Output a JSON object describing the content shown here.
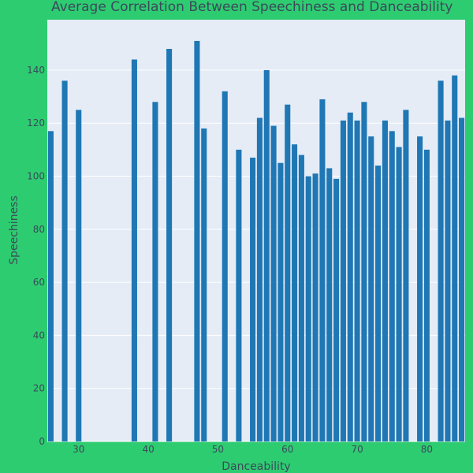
{
  "colors": {
    "background": "#2ecc71",
    "plot_background": "#e5ecf6",
    "grid": "#ffffff",
    "bar": "#1f77b4",
    "text": "#3a4a5a"
  },
  "chart_data": {
    "type": "bar",
    "title": "Average Correlation Between Speechiness and Danceability",
    "xlabel": "Danceability",
    "ylabel": "Speechiness",
    "xlim": [
      25.5,
      85.5
    ],
    "ylim": [
      0,
      159
    ],
    "x_ticks": [
      30,
      40,
      50,
      60,
      70,
      80
    ],
    "y_ticks": [
      0,
      20,
      40,
      60,
      80,
      100,
      120,
      140
    ],
    "grid": true,
    "x": [
      26,
      28,
      30,
      38,
      41,
      43,
      47,
      48,
      51,
      53,
      55,
      56,
      57,
      58,
      59,
      60,
      61,
      62,
      63,
      64,
      65,
      66,
      67,
      68,
      69,
      70,
      71,
      72,
      73,
      74,
      75,
      76,
      77,
      79,
      80,
      82,
      83,
      84,
      85
    ],
    "values": [
      117,
      136,
      125,
      144,
      128,
      148,
      151,
      118,
      132,
      110,
      107,
      122,
      140,
      119,
      105,
      127,
      112,
      108,
      100,
      101,
      129,
      103,
      99,
      121,
      124,
      121,
      128,
      115,
      104,
      121,
      117,
      111,
      125,
      115,
      110,
      136,
      121,
      138,
      122
    ]
  }
}
